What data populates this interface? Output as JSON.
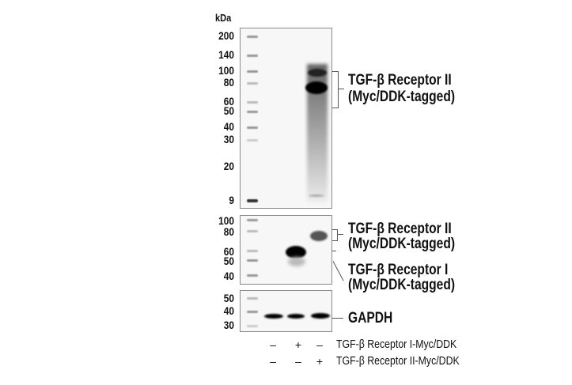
{
  "unit_label": "kDa",
  "panel1": {
    "markers": [
      "200",
      "140",
      "100",
      "80",
      "60",
      "50",
      "40",
      "30",
      "20",
      "9"
    ],
    "label_line1": "TGF-β Receptor II",
    "label_line2": "(Myc/DDK-tagged)"
  },
  "panel2": {
    "markers": [
      "100",
      "80",
      "60",
      "50",
      "40"
    ],
    "label_a_line1": "TGF-β Receptor II",
    "label_a_line2": "(Myc/DDK-tagged)",
    "label_b_line1": "TGF-β Receptor I",
    "label_b_line2": "(Myc/DDK-tagged)"
  },
  "panel3": {
    "markers": [
      "50",
      "40",
      "30"
    ],
    "label": "GAPDH"
  },
  "conditions": [
    {
      "label": "TGF-β Receptor I-Myc/DDK",
      "signs": [
        "–",
        "+",
        "–"
      ]
    },
    {
      "label": "TGF-β Receptor II-Myc/DDK",
      "signs": [
        "–",
        "–",
        "+"
      ]
    }
  ]
}
